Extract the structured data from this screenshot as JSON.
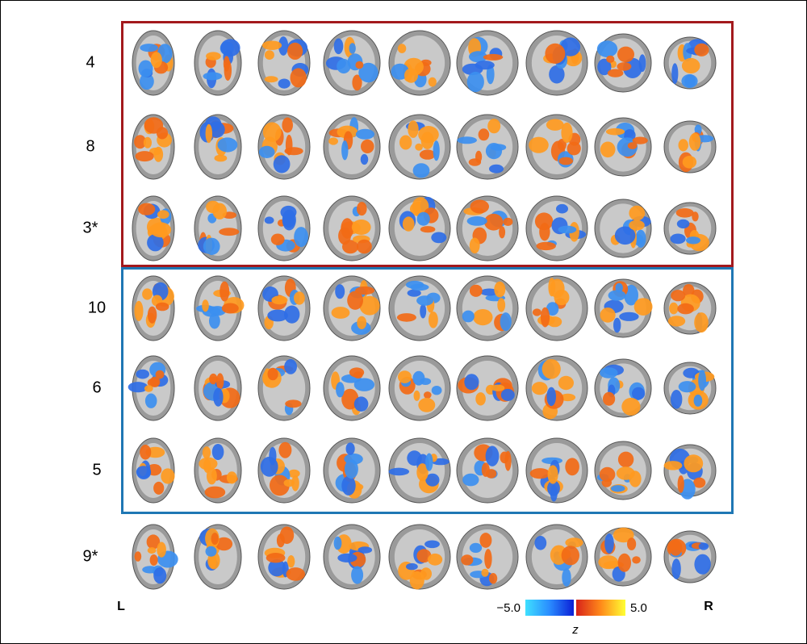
{
  "rows": [
    {
      "label": "4"
    },
    {
      "label": "8"
    },
    {
      "label": "3*"
    },
    {
      "label": "10"
    },
    {
      "label": "6"
    },
    {
      "label": "5"
    },
    {
      "label": "9*"
    }
  ],
  "orientation": {
    "left": "L",
    "right": "R"
  },
  "colorbar": {
    "ticks": [
      {
        "value": -5,
        "label": "−5.0"
      },
      {
        "value": 5,
        "label": "5.0"
      }
    ],
    "label": "z"
  }
}
